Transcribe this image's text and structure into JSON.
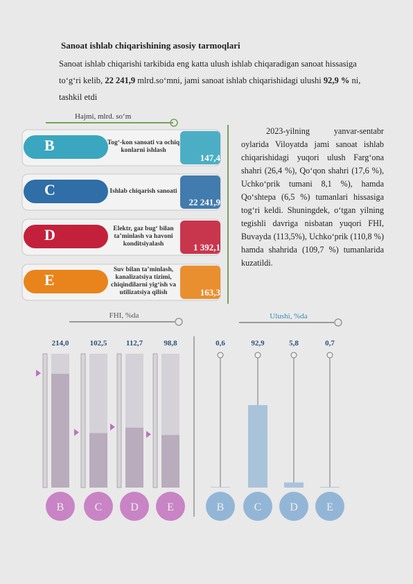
{
  "heading": "Sanoat ishlab chiqarishining asosiy tarmoqlari",
  "intro": [
    "Sanoat ishlab chiqarishi tarkibida eng katta ulush ishlab chiqaradigan sanoat hissasiga to‘g‘ri kelib,",
    "22 241,9",
    "mlrd.so‘mni, jami sanoat ishlab chiqarishidagi ulushi",
    "92,9 %",
    "ni, tashkil etdi"
  ],
  "volume": {
    "title": "Hajmi, mlrd. so‘m",
    "items": [
      {
        "letter": "B",
        "label": "Tog‘-kon sanoati va ochiq konlarni ishlash",
        "value": "147,4"
      },
      {
        "letter": "C",
        "label": "Ishlab chiqarish sanoati",
        "value": "22 241,9"
      },
      {
        "letter": "D",
        "label": "Elektr, gaz bug‘ bilan ta’minlash va havoni konditsiyalash",
        "value": "1 392,1"
      },
      {
        "letter": "E",
        "label": "Suv bilan ta’minlash, kanalizatsiya tizimi, chiqindilarni yig‘ish va utilizatsiya qilish",
        "value": "163,3"
      }
    ]
  },
  "paragraph": "2023-yilning yanvar-sentabr oylarida Viloyatda jami sanoat ishlab chiqarishidagi yuqori ulush Farg‘ona shahri (26,4 %), Qo‘qon shahri (17,6 %), Uchko‘prik tumani 8,1 %), hamda Qo‘shtepa (6,5 %) tumanlari hissasiga tog‘ri keldi. Shuningdek, o‘tgan yilning tegishli davriga nisbatan yuqori FHI, Buvayda (113,5%), Uchko‘prik (110,8 %) hamda shahrida (109,7 %) tumanlarida kuzatildi.",
  "chart_data": [
    {
      "type": "bar",
      "title": "FHI, %da",
      "categories": [
        "B",
        "C",
        "D",
        "E"
      ],
      "values": [
        214.0,
        102.5,
        112.7,
        98.8
      ],
      "value_labels": [
        "214,0",
        "102,5",
        "112,7",
        "98,8"
      ],
      "color": "#b8acbd"
    },
    {
      "type": "lollipop",
      "title": "Ulushi, %da",
      "categories": [
        "B",
        "C",
        "D",
        "E"
      ],
      "values": [
        0.6,
        92.9,
        5.8,
        0.7
      ],
      "value_labels": [
        "0,6",
        "92,9",
        "5,8",
        "0,7"
      ],
      "color": "#a9c3da"
    }
  ]
}
